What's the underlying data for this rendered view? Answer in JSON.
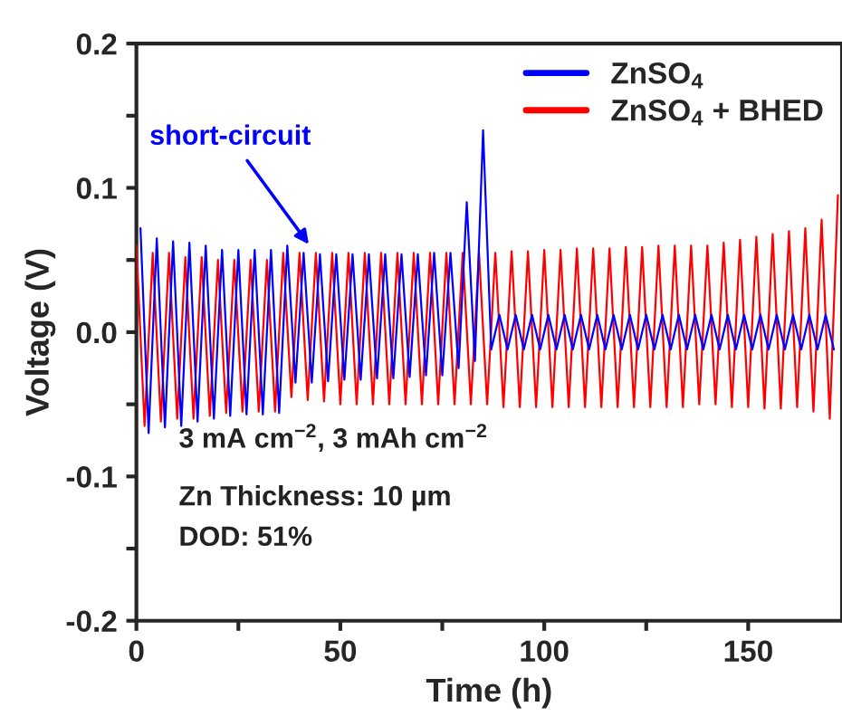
{
  "chart_data": {
    "type": "line",
    "xlabel": "Time (h)",
    "ylabel": "Voltage (V)",
    "xlim": [
      0,
      173
    ],
    "ylim": [
      -0.2,
      0.2
    ],
    "xticks": [
      0,
      {
        "value": 25,
        "label": null
      },
      50,
      {
        "value": 75,
        "label": null
      },
      100,
      {
        "value": 125,
        "label": null
      },
      150
    ],
    "yticks": [
      -0.2,
      {
        "value": -0.15,
        "label": null
      },
      -0.1,
      {
        "value": -0.05,
        "label": null
      },
      {
        "value": 0,
        "label": "0.0"
      },
      {
        "value": 0.05,
        "label": null
      },
      0.1,
      {
        "value": 0.15,
        "label": null
      },
      0.2
    ],
    "grid": false,
    "legend": "top right",
    "marker": "none",
    "line_style": "solid",
    "series": [
      {
        "name": "ZnSO$_{4}$",
        "color": "#0000ff",
        "x": [
          1,
          3,
          5,
          7,
          9,
          11,
          13,
          15,
          17,
          19,
          21,
          23,
          25,
          27,
          29,
          31,
          33,
          35,
          37,
          39,
          41,
          43,
          45,
          47,
          49,
          51,
          53,
          55,
          57,
          59,
          61,
          63,
          65,
          67,
          69,
          71,
          73,
          75,
          77,
          79,
          81,
          83,
          85,
          87,
          89,
          91,
          93,
          95,
          97,
          99,
          101,
          103,
          105,
          107,
          109,
          111,
          113,
          115,
          117,
          119,
          121,
          123,
          125,
          127,
          129,
          131,
          133,
          135,
          137,
          139,
          141,
          143,
          145,
          147,
          149,
          151,
          153,
          155,
          157,
          159,
          161,
          163,
          165,
          167,
          169,
          171
        ],
        "values": [
          0.072,
          -0.07,
          0.065,
          -0.066,
          0.063,
          -0.065,
          0.062,
          -0.062,
          0.06,
          -0.06,
          0.057,
          -0.058,
          0.057,
          -0.057,
          0.057,
          -0.057,
          0.057,
          -0.056,
          0.06,
          -0.035,
          0.055,
          -0.035,
          0.054,
          -0.034,
          0.054,
          -0.033,
          0.054,
          -0.033,
          0.054,
          -0.032,
          0.054,
          -0.032,
          0.054,
          -0.031,
          0.054,
          -0.03,
          0.055,
          -0.03,
          0.055,
          -0.025,
          0.09,
          -0.02,
          0.14,
          -0.012,
          0.012,
          -0.012,
          0.012,
          -0.012,
          0.012,
          -0.012,
          0.012,
          -0.012,
          0.012,
          -0.012,
          0.012,
          -0.012,
          0.012,
          -0.012,
          0.012,
          -0.012,
          0.012,
          -0.012,
          0.012,
          -0.012,
          0.012,
          -0.012,
          0.012,
          -0.012,
          0.012,
          -0.012,
          0.012,
          -0.012,
          0.012,
          -0.012,
          0.012,
          -0.012,
          0.012,
          -0.012,
          0.012,
          -0.012,
          0.012,
          -0.012,
          0.012,
          -0.012,
          0.012,
          -0.012
        ]
      },
      {
        "name": "ZnSO$_{4}$ + BHED",
        "color": "#ff0000",
        "x": [
          0,
          2,
          4,
          6,
          8,
          10,
          12,
          14,
          16,
          18,
          20,
          22,
          24,
          26,
          28,
          30,
          32,
          34,
          36,
          38,
          40,
          42,
          44,
          46,
          48,
          50,
          52,
          54,
          56,
          58,
          60,
          62,
          64,
          66,
          68,
          70,
          72,
          74,
          76,
          78,
          80,
          82,
          84,
          86,
          88,
          90,
          92,
          94,
          96,
          98,
          100,
          102,
          104,
          106,
          108,
          110,
          112,
          114,
          116,
          118,
          120,
          122,
          124,
          126,
          128,
          130,
          132,
          134,
          136,
          138,
          140,
          142,
          144,
          146,
          148,
          150,
          152,
          154,
          156,
          158,
          160,
          162,
          164,
          166,
          168,
          170,
          172
        ],
        "values": [
          0.06,
          -0.065,
          0.055,
          -0.062,
          0.055,
          -0.06,
          0.052,
          -0.06,
          0.052,
          -0.058,
          0.05,
          -0.056,
          0.05,
          -0.055,
          0.05,
          -0.055,
          0.05,
          -0.055,
          0.055,
          -0.045,
          0.055,
          -0.047,
          0.055,
          -0.048,
          0.055,
          -0.05,
          0.055,
          -0.05,
          0.055,
          -0.05,
          0.055,
          -0.05,
          0.055,
          -0.05,
          0.055,
          -0.05,
          0.055,
          -0.05,
          0.055,
          -0.05,
          0.055,
          -0.05,
          0.055,
          -0.05,
          0.055,
          -0.052,
          0.056,
          -0.052,
          0.056,
          -0.052,
          0.057,
          -0.052,
          0.057,
          -0.052,
          0.058,
          -0.052,
          0.058,
          -0.052,
          0.058,
          -0.052,
          0.059,
          -0.052,
          0.059,
          -0.052,
          0.06,
          -0.052,
          0.06,
          -0.052,
          0.06,
          -0.05,
          0.06,
          -0.05,
          0.062,
          -0.052,
          0.064,
          -0.052,
          0.066,
          -0.053,
          0.068,
          -0.053,
          0.07,
          -0.052,
          0.072,
          -0.055,
          0.078,
          -0.06,
          0.095
        ]
      }
    ],
    "annotations": [
      {
        "text": "short-circuit",
        "x": 43,
        "y": 0.058
      },
      "3 mA cm$^{−2}$, 3 mAh cm$^{−2}$",
      "Zn Thickness: 10 µm",
      "DOD: 51%"
    ]
  }
}
